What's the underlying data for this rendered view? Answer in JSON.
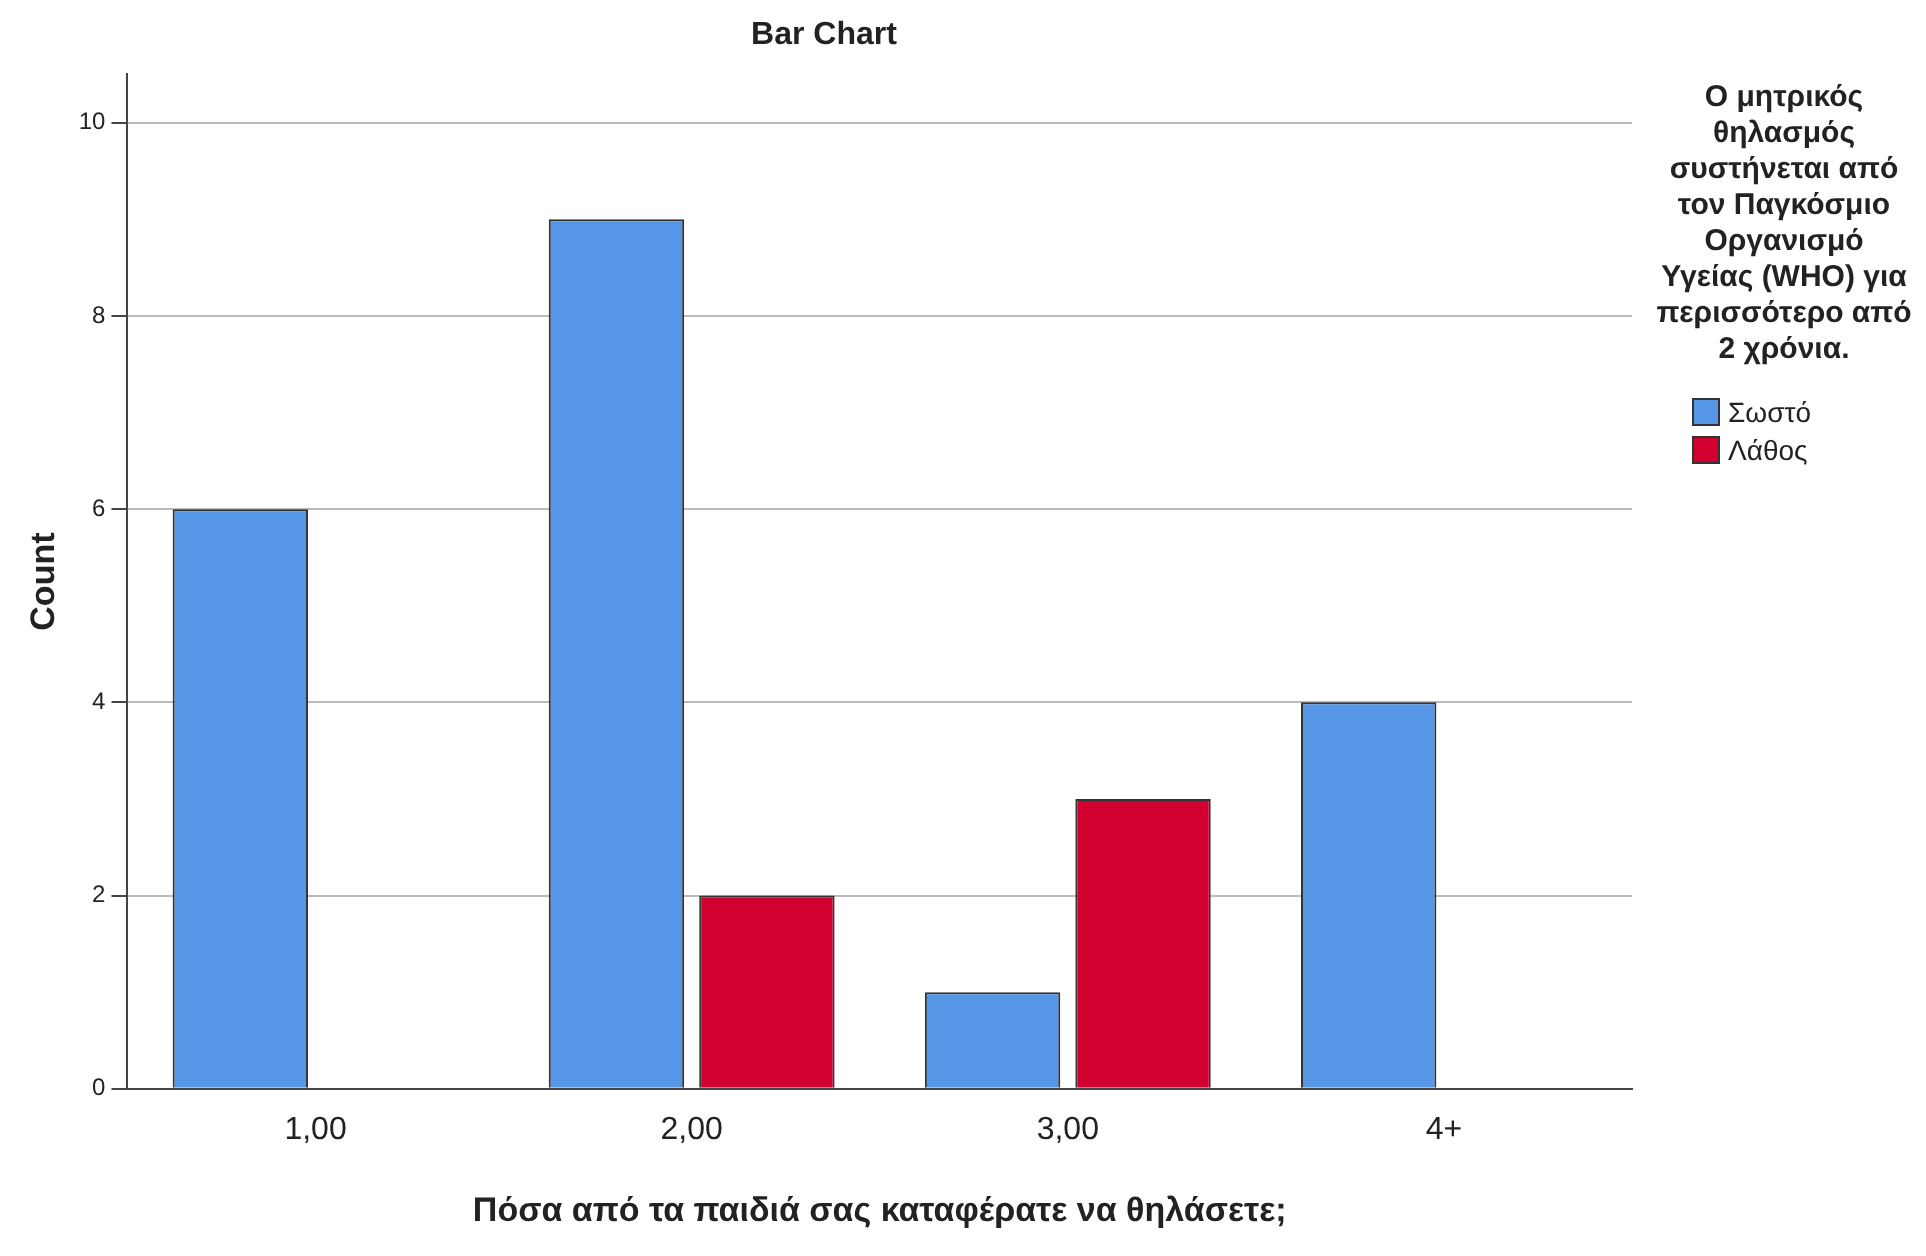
{
  "chart_data": {
    "type": "bar",
    "title": "Bar Chart",
    "xlabel": "Πόσα από τα παιδιά σας καταφέρατε να θηλάσετε;",
    "ylabel": "Count",
    "legend_title": "Ο μητρικός θηλασμός συστήνεται από τον Παγκόσμιο Οργανισμό Υγείας (WHO) για περισσότερο από 2 χρόνια.",
    "categories": [
      "1,00",
      "2,00",
      "3,00",
      "4+"
    ],
    "series": [
      {
        "name": "Σωστό",
        "color": "#5596e6",
        "values": [
          6,
          9,
          1,
          4
        ]
      },
      {
        "name": "Λάθος",
        "color": "#d2002e",
        "values": [
          null,
          2,
          3,
          null
        ]
      }
    ],
    "ylim": [
      0,
      10.5
    ],
    "yticks": [
      0,
      2,
      4,
      6,
      8,
      10
    ],
    "grid": "y",
    "legend": "right"
  }
}
